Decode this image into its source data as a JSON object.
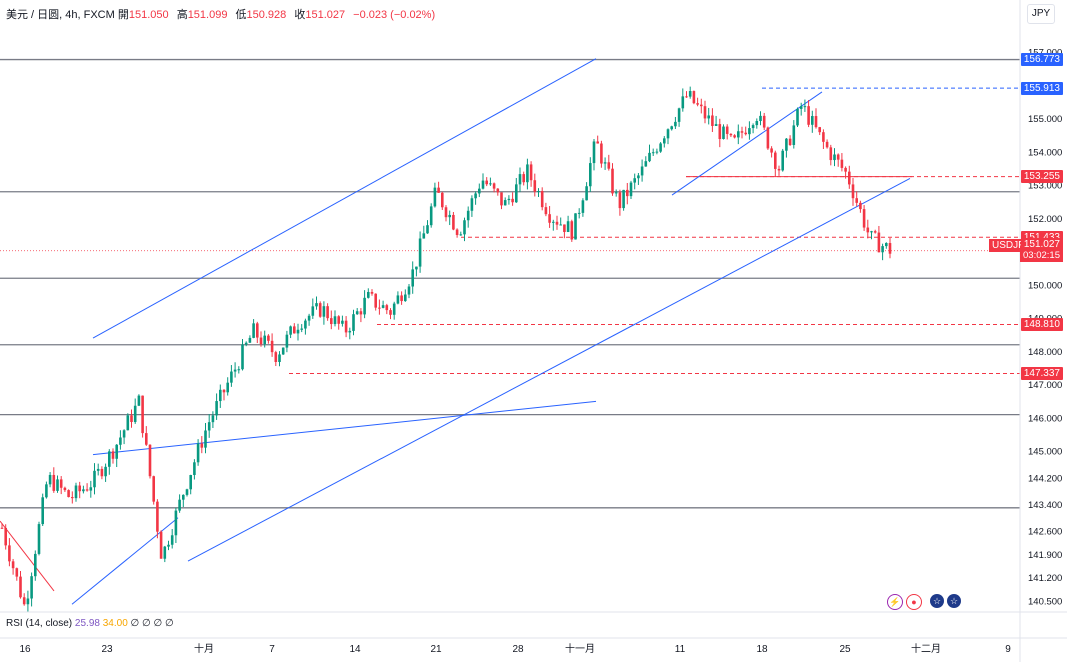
{
  "legend": {
    "symbol": "美元 / 日圆, 4h, FXCM",
    "open_label": "開",
    "open": "151.050",
    "high_label": "高",
    "high": "151.099",
    "low_label": "低",
    "low": "150.928",
    "close_label": "收",
    "close": "151.027",
    "change": "−0.023 (−0.02%)"
  },
  "currency_button": "JPY",
  "rsi_label": "RSI (14, close)",
  "rsi_value_1": "25.98",
  "rsi_value_2": "34.00",
  "rsi_extra": "∅ ∅ ∅ ∅",
  "last_symbol": "USDJPY",
  "last_price": "151.027",
  "countdown": "03:02:15",
  "colors": {
    "up": "#089981",
    "down": "#f23645",
    "trend": "#2962ff",
    "level": "#787b86"
  },
  "icons": [
    "lightning-icon",
    "record-icon",
    "us-flag-icon",
    "us-flag-icon"
  ],
  "chart_data": {
    "type": "candlestick",
    "timeframe": "4h",
    "ylim": [
      140.1,
      157.2
    ],
    "y_ticks": [
      "157.000",
      "156.000",
      "155.000",
      "154.000",
      "153.000",
      "152.000",
      "151.000",
      "150.000",
      "149.000",
      "148.000",
      "147.000",
      "146.000",
      "145.000",
      "144.200",
      "143.400",
      "142.600",
      "141.900",
      "141.200",
      "140.500"
    ],
    "x_ticks": [
      "16",
      "23",
      "十月",
      "7",
      "14",
      "21",
      "28",
      "十一月",
      "11",
      "18",
      "25",
      "十二月",
      "9"
    ],
    "horizontal_levels": [
      156.773,
      152.8,
      150.2,
      148.2,
      146.1,
      143.3
    ],
    "dashed_levels": [
      {
        "value": "155.913",
        "color": "#2962ff"
      },
      {
        "value": "153.255",
        "color": "#f23645"
      },
      {
        "value": "151.433",
        "color": "#f23645"
      },
      {
        "value": "148.810",
        "color": "#f23645"
      },
      {
        "value": "147.337",
        "color": "#f23645"
      }
    ],
    "price_labels": [
      {
        "value": "156.773",
        "color": "#2962ff"
      },
      {
        "value": "155.913",
        "color": "#2962ff"
      },
      {
        "value": "153.255",
        "color": "#f23645"
      },
      {
        "value": "151.433",
        "color": "#f23645"
      },
      {
        "value": "148.810",
        "color": "#f23645"
      },
      {
        "value": "147.337",
        "color": "#f23645"
      }
    ],
    "trend_lines": [
      {
        "from": [
          "16",
          142.9
        ],
        "to": [
          "23",
          140.8
        ],
        "color": "#f23645"
      },
      {
        "from": [
          "16",
          140.4
        ],
        "to": [
          "23",
          143.0
        ],
        "color": "#2962ff"
      },
      {
        "from": [
          "23",
          144.9
        ],
        "to": [
          "十月",
          146.5
        ],
        "color": "#2962ff"
      },
      {
        "from": [
          "十月",
          141.7
        ],
        "to": [
          "28",
          153.2
        ],
        "color": "#2962ff"
      },
      {
        "from": [
          "7",
          148.4
        ],
        "to": [
          "28",
          156.8
        ],
        "color": "#2962ff"
      },
      {
        "from": [
          "11",
          152.7
        ],
        "to": [
          "18",
          155.8
        ],
        "color": "#2962ff"
      }
    ],
    "price_path": [
      [
        "16",
        142.7
      ],
      [
        "16",
        140.3
      ],
      [
        "23",
        144.2
      ],
      [
        "23",
        143.6
      ],
      [
        "23",
        144.1
      ],
      [
        "23",
        145.2
      ],
      [
        "23",
        146.5
      ],
      [
        "十月",
        141.8
      ],
      [
        "十月",
        143.9
      ],
      [
        "十月",
        145.8
      ],
      [
        "7",
        147.2
      ],
      [
        "7",
        148.6
      ],
      [
        "7",
        147.9
      ],
      [
        "7",
        148.9
      ],
      [
        "14",
        149.3
      ],
      [
        "14",
        148.6
      ],
      [
        "14",
        149.6
      ],
      [
        "21",
        149.2
      ],
      [
        "21",
        150.4
      ],
      [
        "21",
        152.8
      ],
      [
        "21",
        151.6
      ],
      [
        "28",
        153.2
      ],
      [
        "28",
        152.4
      ],
      [
        "28",
        153.4
      ],
      [
        "十一月",
        152.1
      ],
      [
        "十一月",
        151.6
      ],
      [
        "十一月",
        154.3
      ],
      [
        "11",
        152.4
      ],
      [
        "11",
        153.4
      ],
      [
        "11",
        154.6
      ],
      [
        "11",
        155.7
      ],
      [
        "18",
        154.9
      ],
      [
        "18",
        154.2
      ],
      [
        "18",
        155.2
      ],
      [
        "18",
        153.5
      ],
      [
        "18",
        155.4
      ],
      [
        "25",
        154.2
      ],
      [
        "25",
        153.3
      ],
      [
        "25",
        151.4
      ],
      [
        "25",
        151.0
      ]
    ]
  }
}
